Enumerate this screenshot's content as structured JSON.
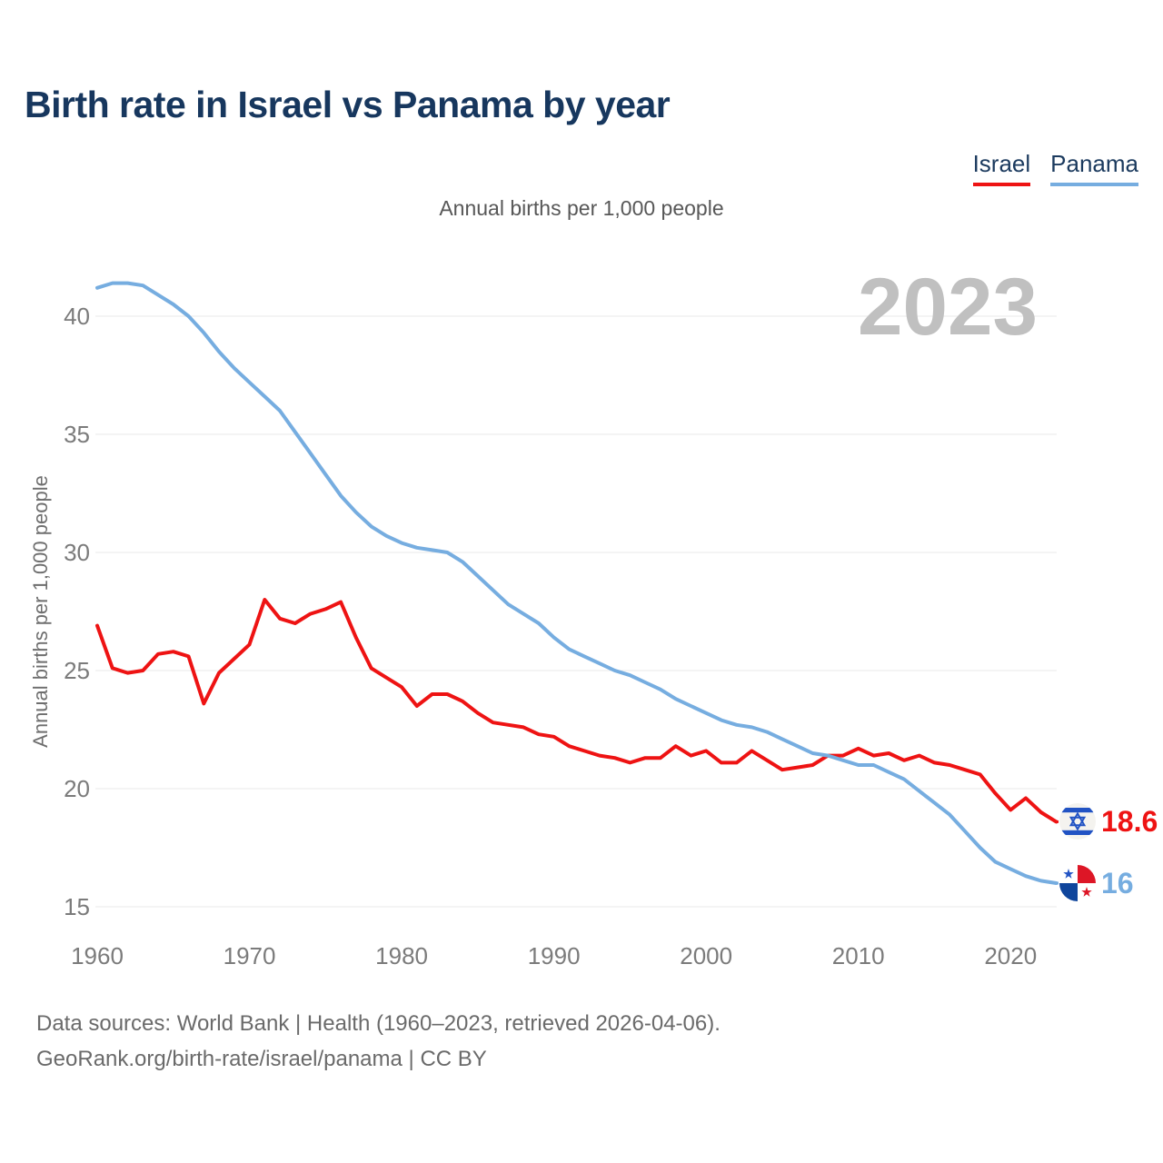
{
  "header": {
    "title": "Birth rate in Israel vs Panama by year"
  },
  "legend": {
    "israel": {
      "label": "Israel",
      "color": "#ee1313"
    },
    "panama": {
      "label": "Panama",
      "color": "#76ade0"
    }
  },
  "subtitle": "Annual births per 1,000 people",
  "watermark": "2023",
  "end_labels": {
    "israel": {
      "value": "18.6",
      "flag": "israel-flag-icon"
    },
    "panama": {
      "value": "16",
      "flag": "panama-flag-icon"
    }
  },
  "footer": {
    "line1": "Data sources: World Bank | Health (1960–2023, retrieved 2026-04-06).",
    "line2": "GeoRank.org/birth-rate/israel/panama | CC BY"
  },
  "chart_data": {
    "type": "line",
    "title": "Birth rate in Israel vs Panama by year",
    "xlabel": "",
    "ylabel": "Annual births per 1,000 people",
    "xlim": [
      1960,
      2023
    ],
    "ylim": [
      14.6,
      42
    ],
    "grid": "horizontal",
    "grid_color": "#e8e8e8",
    "tick_color": "#7b7b7b",
    "watermark_color": "#c0c0c0",
    "legend_position": "top-right",
    "y_ticks": [
      15,
      20,
      25,
      30,
      35,
      40
    ],
    "x_ticks": [
      1960,
      1970,
      1980,
      1990,
      2000,
      2010,
      2020
    ],
    "x": [
      1960,
      1961,
      1962,
      1963,
      1964,
      1965,
      1966,
      1967,
      1968,
      1969,
      1970,
      1971,
      1972,
      1973,
      1974,
      1975,
      1976,
      1977,
      1978,
      1979,
      1980,
      1981,
      1982,
      1983,
      1984,
      1985,
      1986,
      1987,
      1988,
      1989,
      1990,
      1991,
      1992,
      1993,
      1994,
      1995,
      1996,
      1997,
      1998,
      1999,
      2000,
      2001,
      2002,
      2003,
      2004,
      2005,
      2006,
      2007,
      2008,
      2009,
      2010,
      2011,
      2012,
      2013,
      2014,
      2015,
      2016,
      2017,
      2018,
      2019,
      2020,
      2021,
      2022,
      2023
    ],
    "series": [
      {
        "name": "Israel",
        "color": "#ee1313",
        "values": [
          26.9,
          25.1,
          24.9,
          25.0,
          25.7,
          25.8,
          25.6,
          23.6,
          24.9,
          25.5,
          26.1,
          28.0,
          27.2,
          27.0,
          27.4,
          27.6,
          27.9,
          26.4,
          25.1,
          24.7,
          24.3,
          23.5,
          24.0,
          24.0,
          23.7,
          23.2,
          22.8,
          22.7,
          22.6,
          22.3,
          22.2,
          21.8,
          21.6,
          21.4,
          21.3,
          21.1,
          21.3,
          21.3,
          21.8,
          21.4,
          21.6,
          21.1,
          21.1,
          21.6,
          21.2,
          20.8,
          20.9,
          21.0,
          21.4,
          21.4,
          21.7,
          21.4,
          21.5,
          21.2,
          21.4,
          21.1,
          21.0,
          20.8,
          20.6,
          19.8,
          19.1,
          19.6,
          19.0,
          18.6
        ]
      },
      {
        "name": "Panama",
        "color": "#76ade0",
        "values": [
          41.2,
          41.4,
          41.4,
          41.3,
          40.9,
          40.5,
          40.0,
          39.3,
          38.5,
          37.8,
          37.2,
          36.6,
          36.0,
          35.1,
          34.2,
          33.3,
          32.4,
          31.7,
          31.1,
          30.7,
          30.4,
          30.2,
          30.1,
          30.0,
          29.6,
          29.0,
          28.4,
          27.8,
          27.4,
          27.0,
          26.4,
          25.9,
          25.6,
          25.3,
          25.0,
          24.8,
          24.5,
          24.2,
          23.8,
          23.5,
          23.2,
          22.9,
          22.7,
          22.6,
          22.4,
          22.1,
          21.8,
          21.5,
          21.4,
          21.2,
          21.0,
          21.0,
          20.7,
          20.4,
          19.9,
          19.4,
          18.9,
          18.2,
          17.5,
          16.9,
          16.6,
          16.3,
          16.1,
          16.0
        ]
      }
    ]
  }
}
